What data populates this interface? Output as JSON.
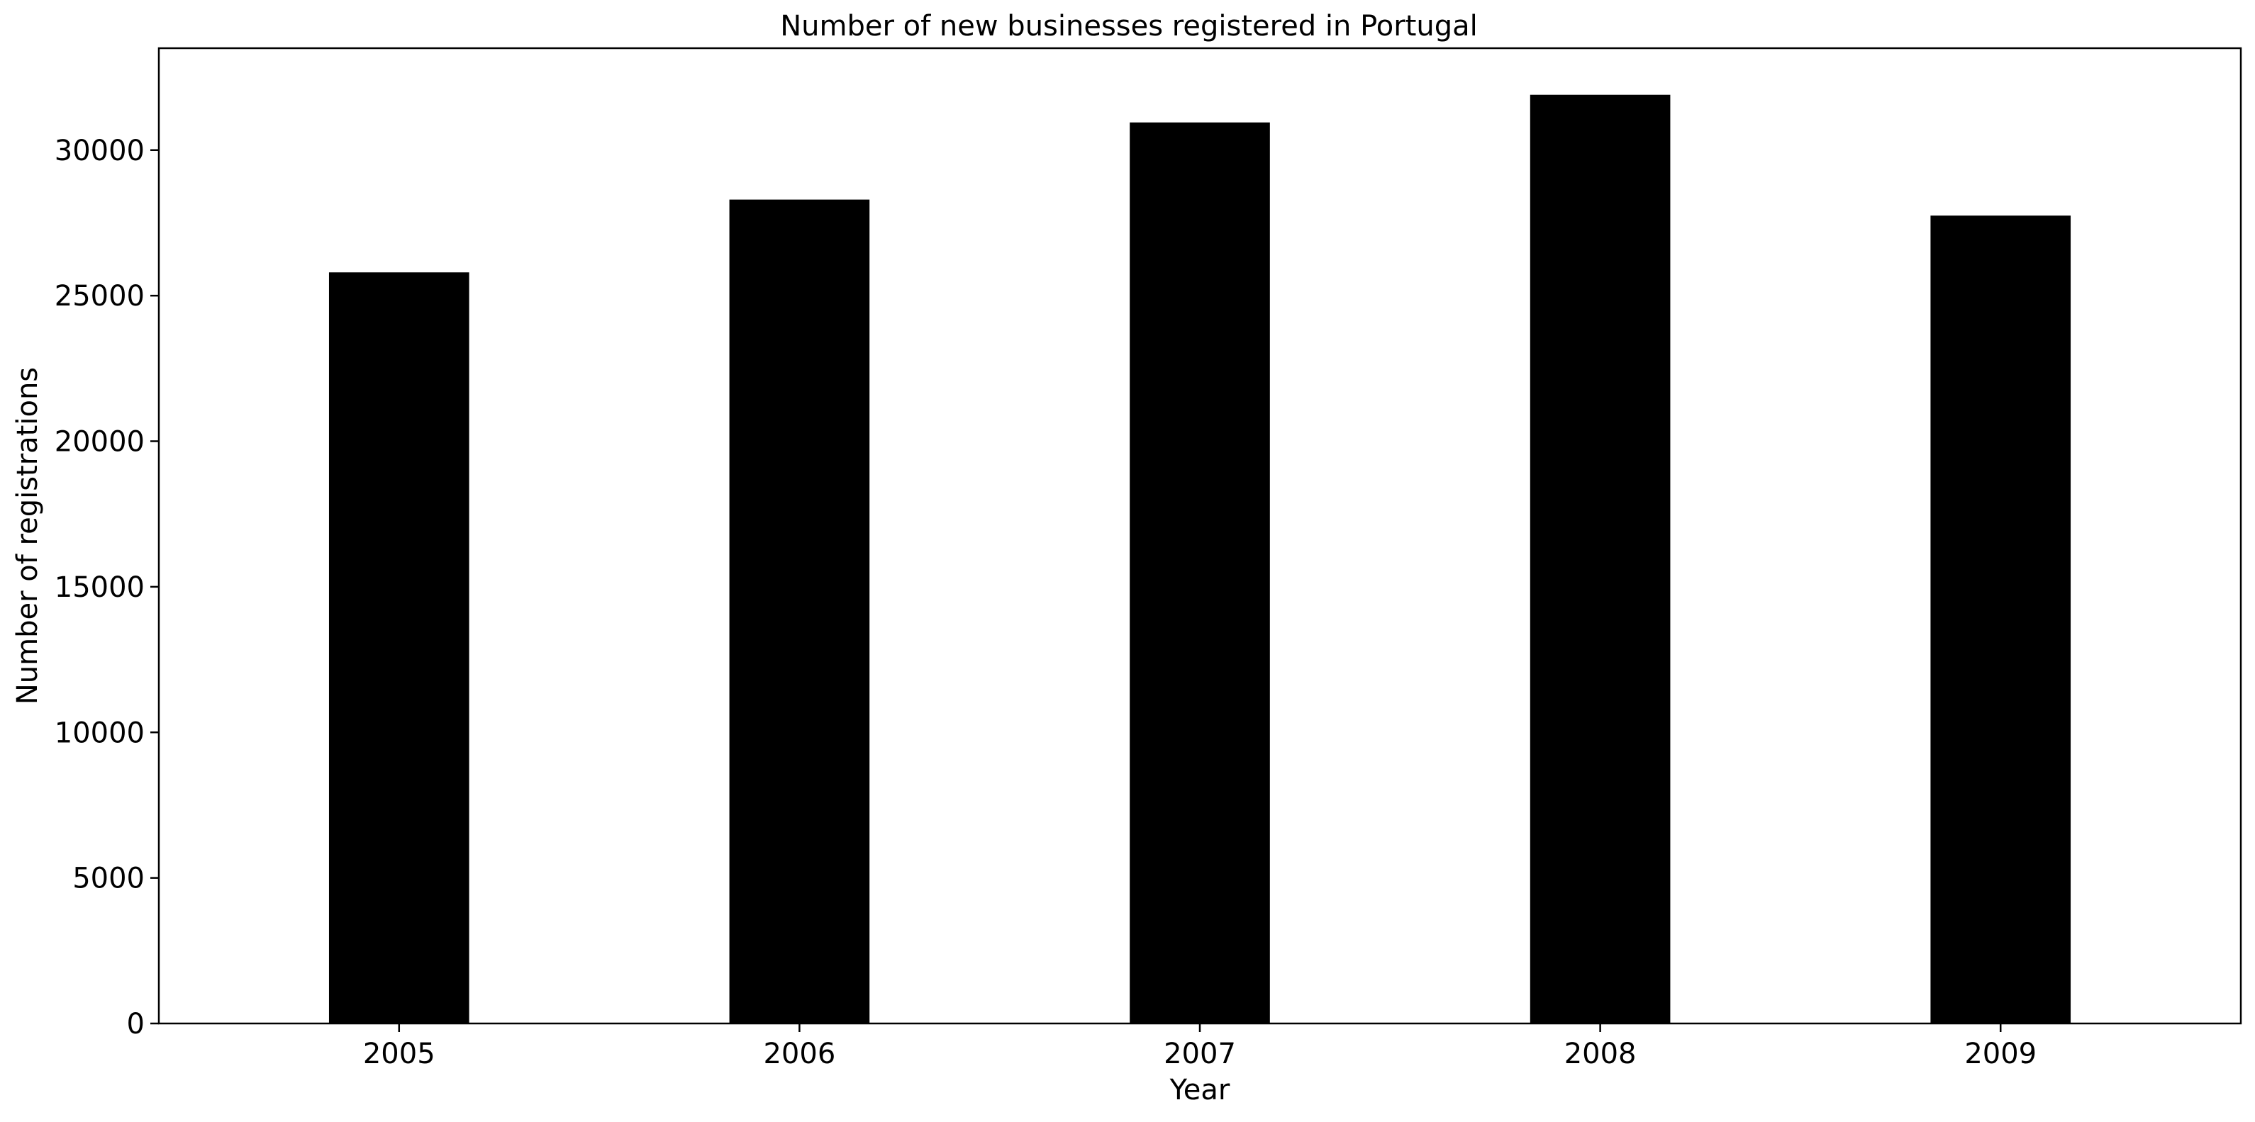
{
  "chart_data": {
    "type": "bar",
    "title": "Number of new businesses registered in Portugal",
    "xlabel": "Year",
    "ylabel": "Number of registrations",
    "categories": [
      "2005",
      "2006",
      "2007",
      "2008",
      "2009"
    ],
    "values": [
      25800,
      28300,
      30950,
      31900,
      27750
    ],
    "ylim": [
      0,
      33500
    ],
    "yticks": [
      0,
      5000,
      10000,
      15000,
      20000,
      25000,
      30000
    ],
    "ytick_labels": [
      "0",
      "5000",
      "10000",
      "15000",
      "20000",
      "25000",
      "30000"
    ],
    "bar_color": "#000000",
    "grid": false,
    "legend": "none"
  }
}
